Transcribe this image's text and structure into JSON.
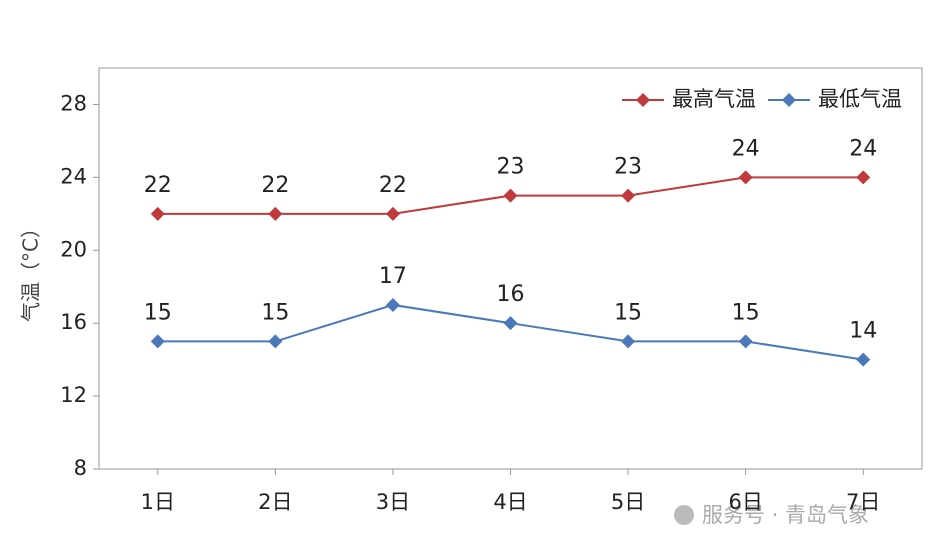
{
  "chart_data": {
    "type": "line",
    "y_label": "气温（°C）",
    "categories": [
      "1日",
      "2日",
      "3日",
      "4日",
      "5日",
      "6日",
      "7日"
    ],
    "series": [
      {
        "name": "最高气温",
        "color": "#c0393b",
        "values": [
          22,
          22,
          22,
          23,
          23,
          24,
          24
        ]
      },
      {
        "name": "最低气温",
        "color": "#4a78b8",
        "values": [
          15,
          15,
          17,
          16,
          15,
          15,
          14
        ]
      }
    ],
    "ylim": [
      8,
      30
    ],
    "yticks": [
      8,
      12,
      16,
      20,
      24,
      28
    ],
    "grid": false,
    "legend": "top-right"
  },
  "watermark": "服务号 · 青岛气象"
}
